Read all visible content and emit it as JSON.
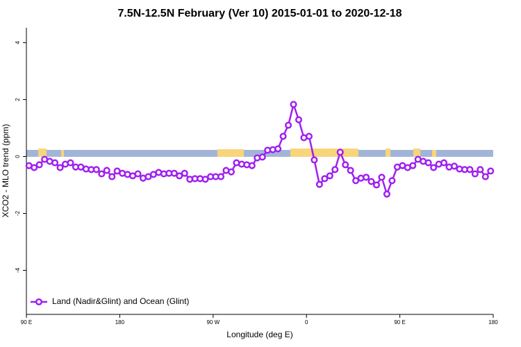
{
  "chart_data": {
    "type": "line",
    "title": "7.5N-12.5N February (Ver 10)   2015-01-01 to 2020-12-18",
    "x_label": "Longitude (deg E)",
    "y_label": "XCO2 - MLO trend (ppm)",
    "x": [
      92.5,
      97.5,
      102.5,
      107.5,
      112.5,
      117.5,
      122.5,
      127.5,
      132.5,
      137.5,
      142.5,
      147.5,
      152.5,
      157.5,
      162.5,
      167.5,
      172.5,
      177.5,
      182.5,
      187.5,
      192.5,
      197.5,
      202.5,
      207.5,
      212.5,
      217.5,
      222.5,
      227.5,
      232.5,
      237.5,
      242.5,
      247.5,
      252.5,
      257.5,
      262.5,
      267.5,
      272.5,
      277.5,
      282.5,
      287.5,
      292.5,
      297.5,
      302.5,
      307.5,
      312.5,
      317.5,
      322.5,
      327.5,
      332.5,
      337.5,
      342.5,
      347.5,
      352.5,
      357.5,
      362.5,
      367.5,
      372.5,
      377.5,
      382.5,
      387.5,
      392.5,
      397.5,
      402.5,
      407.5,
      412.5,
      417.5,
      422.5,
      427.5,
      432.5,
      437.5,
      442.5,
      447.5,
      452.5,
      457.5,
      462.5,
      467.5,
      472.5,
      477.5,
      482.5,
      487.5,
      492.5,
      497.5,
      502.5,
      507.5,
      512.5,
      517.5,
      522.5,
      527.5,
      532.5,
      537.5
    ],
    "series": [
      {
        "name": "Land (Nadir&Glint) and Ocean (Glint)",
        "color": "#a020f0",
        "values": [
          -0.32,
          -0.39,
          -0.29,
          -0.1,
          -0.17,
          -0.22,
          -0.39,
          -0.27,
          -0.22,
          -0.37,
          -0.37,
          -0.44,
          -0.46,
          -0.46,
          -0.61,
          -0.49,
          -0.71,
          -0.51,
          -0.59,
          -0.63,
          -0.68,
          -0.61,
          -0.76,
          -0.71,
          -0.63,
          -0.56,
          -0.61,
          -0.59,
          -0.59,
          -0.68,
          -0.59,
          -0.8,
          -0.78,
          -0.78,
          -0.8,
          -0.71,
          -0.71,
          -0.71,
          -0.49,
          -0.54,
          -0.22,
          -0.27,
          -0.29,
          -0.32,
          -0.05,
          -0.02,
          0.22,
          0.24,
          0.27,
          0.71,
          1.1,
          1.83,
          1.29,
          0.66,
          0.71,
          -0.12,
          -0.98,
          -0.78,
          -0.68,
          -0.46,
          0.15,
          -0.29,
          -0.49,
          -0.85,
          -0.76,
          -0.73,
          -0.88,
          -1.0,
          -0.73,
          -1.32,
          -0.85,
          -0.37,
          -0.32,
          -0.39,
          -0.32,
          -0.1,
          -0.17,
          -0.22,
          -0.39,
          -0.27,
          -0.22,
          -0.37,
          -0.34,
          -0.44,
          -0.46,
          -0.46,
          -0.61,
          -0.46,
          -0.71,
          -0.51
        ]
      }
    ],
    "xlim": [
      90,
      540
    ],
    "xticks": [
      {
        "value": 90,
        "label": "90 E"
      },
      {
        "value": 180,
        "label": "180"
      },
      {
        "value": 270,
        "label": "90 W"
      },
      {
        "value": 360,
        "label": "0"
      },
      {
        "value": 450,
        "label": "90 E"
      },
      {
        "value": 540,
        "label": "180"
      }
    ],
    "ylim": [
      -5.5,
      4.5
    ],
    "yticks": [
      4,
      2,
      0,
      -2,
      -4
    ],
    "legend": "bottom-left"
  }
}
